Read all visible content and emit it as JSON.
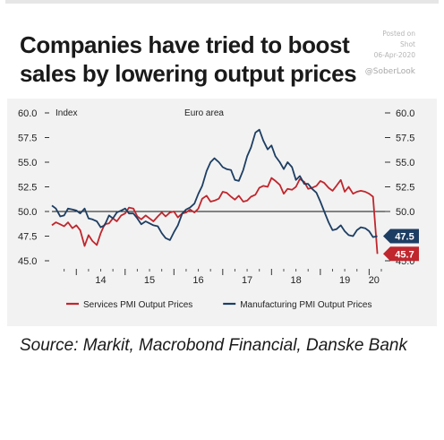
{
  "title": "Companies have tried to boost sales by lowering output prices",
  "stamp": {
    "posted": "Posted on",
    "shot": "Shot",
    "date": "06-Apr-2020",
    "handle": "@SoberLook"
  },
  "source": "Source: Markit, Macrobond Financial, Danske Bank",
  "chart_data": {
    "type": "line",
    "title": "Euro area",
    "ylabel": "Index",
    "ylim": [
      45,
      60
    ],
    "yticks": [
      "45.0",
      "47.5",
      "50.0",
      "52.5",
      "55.0",
      "57.5",
      "60.0"
    ],
    "xlim": [
      2013.5,
      2020.25
    ],
    "xticks": [
      "14",
      "15",
      "16",
      "17",
      "18",
      "19",
      "20"
    ],
    "reference_line": 50,
    "grid": false,
    "legend_position": "bottom",
    "series": [
      {
        "name": "Services PMI Output Prices",
        "color": "#c0262d",
        "end_label": "45.7",
        "x": [
          2013.5,
          2013.58,
          2013.67,
          2013.75,
          2013.83,
          2013.92,
          2014.0,
          2014.08,
          2014.17,
          2014.25,
          2014.33,
          2014.42,
          2014.5,
          2014.58,
          2014.67,
          2014.75,
          2014.83,
          2014.92,
          2015.0,
          2015.08,
          2015.17,
          2015.25,
          2015.33,
          2015.42,
          2015.5,
          2015.58,
          2015.67,
          2015.75,
          2015.83,
          2015.92,
          2016.0,
          2016.08,
          2016.17,
          2016.25,
          2016.33,
          2016.42,
          2016.5,
          2016.58,
          2016.67,
          2016.75,
          2016.83,
          2016.92,
          2017.0,
          2017.08,
          2017.17,
          2017.25,
          2017.33,
          2017.42,
          2017.5,
          2017.58,
          2017.67,
          2017.75,
          2017.83,
          2017.92,
          2018.0,
          2018.08,
          2018.17,
          2018.25,
          2018.33,
          2018.42,
          2018.5,
          2018.58,
          2018.67,
          2018.75,
          2018.83,
          2018.92,
          2019.0,
          2019.08,
          2019.17,
          2019.25,
          2019.33,
          2019.42,
          2019.5,
          2019.58,
          2019.67,
          2019.75,
          2019.83,
          2019.92,
          2020.0,
          2020.08,
          2020.17
        ],
        "y": [
          48.6,
          48.9,
          48.7,
          48.5,
          48.9,
          48.3,
          48.6,
          48.1,
          46.5,
          47.6,
          47.0,
          46.6,
          47.8,
          48.7,
          48.8,
          49.3,
          49.0,
          49.6,
          49.8,
          50.4,
          50.3,
          49.5,
          49.2,
          49.6,
          49.3,
          49.0,
          49.5,
          49.9,
          49.5,
          49.9,
          50.0,
          49.4,
          49.8,
          49.9,
          50.2,
          49.9,
          50.3,
          51.3,
          51.6,
          51.0,
          51.1,
          51.3,
          52.0,
          51.9,
          51.5,
          51.2,
          51.6,
          51.0,
          51.1,
          51.5,
          51.7,
          52.4,
          52.6,
          52.5,
          53.4,
          53.1,
          52.7,
          51.8,
          52.3,
          52.2,
          52.5,
          53.3,
          53.0,
          52.3,
          52.4,
          52.6,
          53.1,
          52.9,
          52.4,
          52.1,
          52.6,
          53.2,
          52.0,
          52.5,
          51.8,
          52.0,
          52.1,
          52.0,
          51.8,
          51.5,
          45.7
        ]
      },
      {
        "name": "Manufacturing PMI Output Prices",
        "color": "#1d3e63",
        "end_label": "47.5",
        "x": [
          2013.5,
          2013.58,
          2013.67,
          2013.75,
          2013.83,
          2013.92,
          2014.0,
          2014.08,
          2014.17,
          2014.25,
          2014.33,
          2014.42,
          2014.5,
          2014.58,
          2014.67,
          2014.75,
          2014.83,
          2014.92,
          2015.0,
          2015.08,
          2015.17,
          2015.25,
          2015.33,
          2015.42,
          2015.5,
          2015.58,
          2015.67,
          2015.75,
          2015.83,
          2015.92,
          2016.0,
          2016.08,
          2016.17,
          2016.25,
          2016.33,
          2016.42,
          2016.5,
          2016.58,
          2016.67,
          2016.75,
          2016.83,
          2016.92,
          2017.0,
          2017.08,
          2017.17,
          2017.25,
          2017.33,
          2017.42,
          2017.5,
          2017.58,
          2017.67,
          2017.75,
          2017.83,
          2017.92,
          2018.0,
          2018.08,
          2018.17,
          2018.25,
          2018.33,
          2018.42,
          2018.5,
          2018.58,
          2018.67,
          2018.75,
          2018.83,
          2018.92,
          2019.0,
          2019.08,
          2019.17,
          2019.25,
          2019.33,
          2019.42,
          2019.5,
          2019.58,
          2019.67,
          2019.75,
          2019.83,
          2019.92,
          2020.0,
          2020.08,
          2020.17
        ],
        "y": [
          50.6,
          50.3,
          49.5,
          49.6,
          50.3,
          50.2,
          50.1,
          49.8,
          50.3,
          49.3,
          49.2,
          49.0,
          48.4,
          48.6,
          49.6,
          49.3,
          49.9,
          50.1,
          50.3,
          49.8,
          49.8,
          49.3,
          48.7,
          49.0,
          48.8,
          48.6,
          48.5,
          47.8,
          47.3,
          47.1,
          47.9,
          48.6,
          49.8,
          50.2,
          50.4,
          50.8,
          51.8,
          52.6,
          54.1,
          55.0,
          55.4,
          55.0,
          54.5,
          54.3,
          54.2,
          53.2,
          53.1,
          54.2,
          55.6,
          56.5,
          58.0,
          58.3,
          57.2,
          56.3,
          56.7,
          55.6,
          55.0,
          54.3,
          55.0,
          54.5,
          53.2,
          53.6,
          52.8,
          52.8,
          52.3,
          51.9,
          51.0,
          50.0,
          48.9,
          48.1,
          48.2,
          48.6,
          48.0,
          47.6,
          47.5,
          48.1,
          48.4,
          48.3,
          48.0,
          47.4,
          47.5
        ]
      }
    ]
  }
}
